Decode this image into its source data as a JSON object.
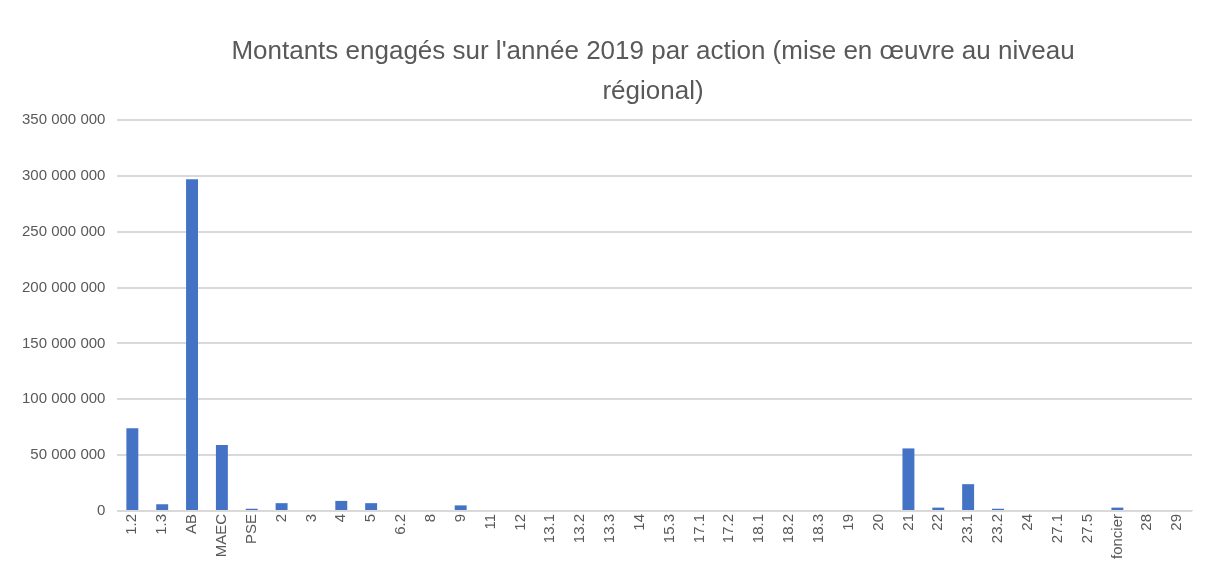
{
  "chart_data": {
    "type": "bar",
    "title": "Montants engagés sur l'année 2019 par action (mise en œuvre au niveau régional)",
    "categories": [
      "1.2",
      "1.3",
      "AB",
      "MAEC",
      "PSE",
      "2",
      "3",
      "4",
      "5",
      "6.2",
      "8",
      "9",
      "11",
      "12",
      "13.1",
      "13.2",
      "13.3",
      "14",
      "15.3",
      "17.1",
      "17.2",
      "18.1",
      "18.2",
      "18.3",
      "19",
      "20",
      "21",
      "22",
      "23.1",
      "23.2",
      "24",
      "27.1",
      "27.5",
      "foncier",
      "28",
      "29"
    ],
    "values": [
      74000000,
      6000000,
      297000000,
      59000000,
      2000000,
      7000000,
      0,
      9000000,
      7000000,
      0,
      0,
      5000000,
      0,
      0,
      0,
      0,
      0,
      0,
      0,
      0,
      0,
      0,
      0,
      0,
      0,
      0,
      56000000,
      3000000,
      24000000,
      2000000,
      0,
      0,
      0,
      3000000,
      0,
      0
    ],
    "color": "#4472c4",
    "ylim": [
      0,
      350000000
    ],
    "yticks": [
      {
        "value": 0,
        "label": "0"
      },
      {
        "value": 50000000,
        "label": "50 000 000"
      },
      {
        "value": 100000000,
        "label": "100 000 000"
      },
      {
        "value": 150000000,
        "label": "150 000 000"
      },
      {
        "value": 200000000,
        "label": "200 000 000"
      },
      {
        "value": 250000000,
        "label": "250 000 000"
      },
      {
        "value": 300000000,
        "label": "300 000 000"
      },
      {
        "value": 350000000,
        "label": "350 000 000"
      }
    ],
    "grid": "y",
    "legend": false
  }
}
